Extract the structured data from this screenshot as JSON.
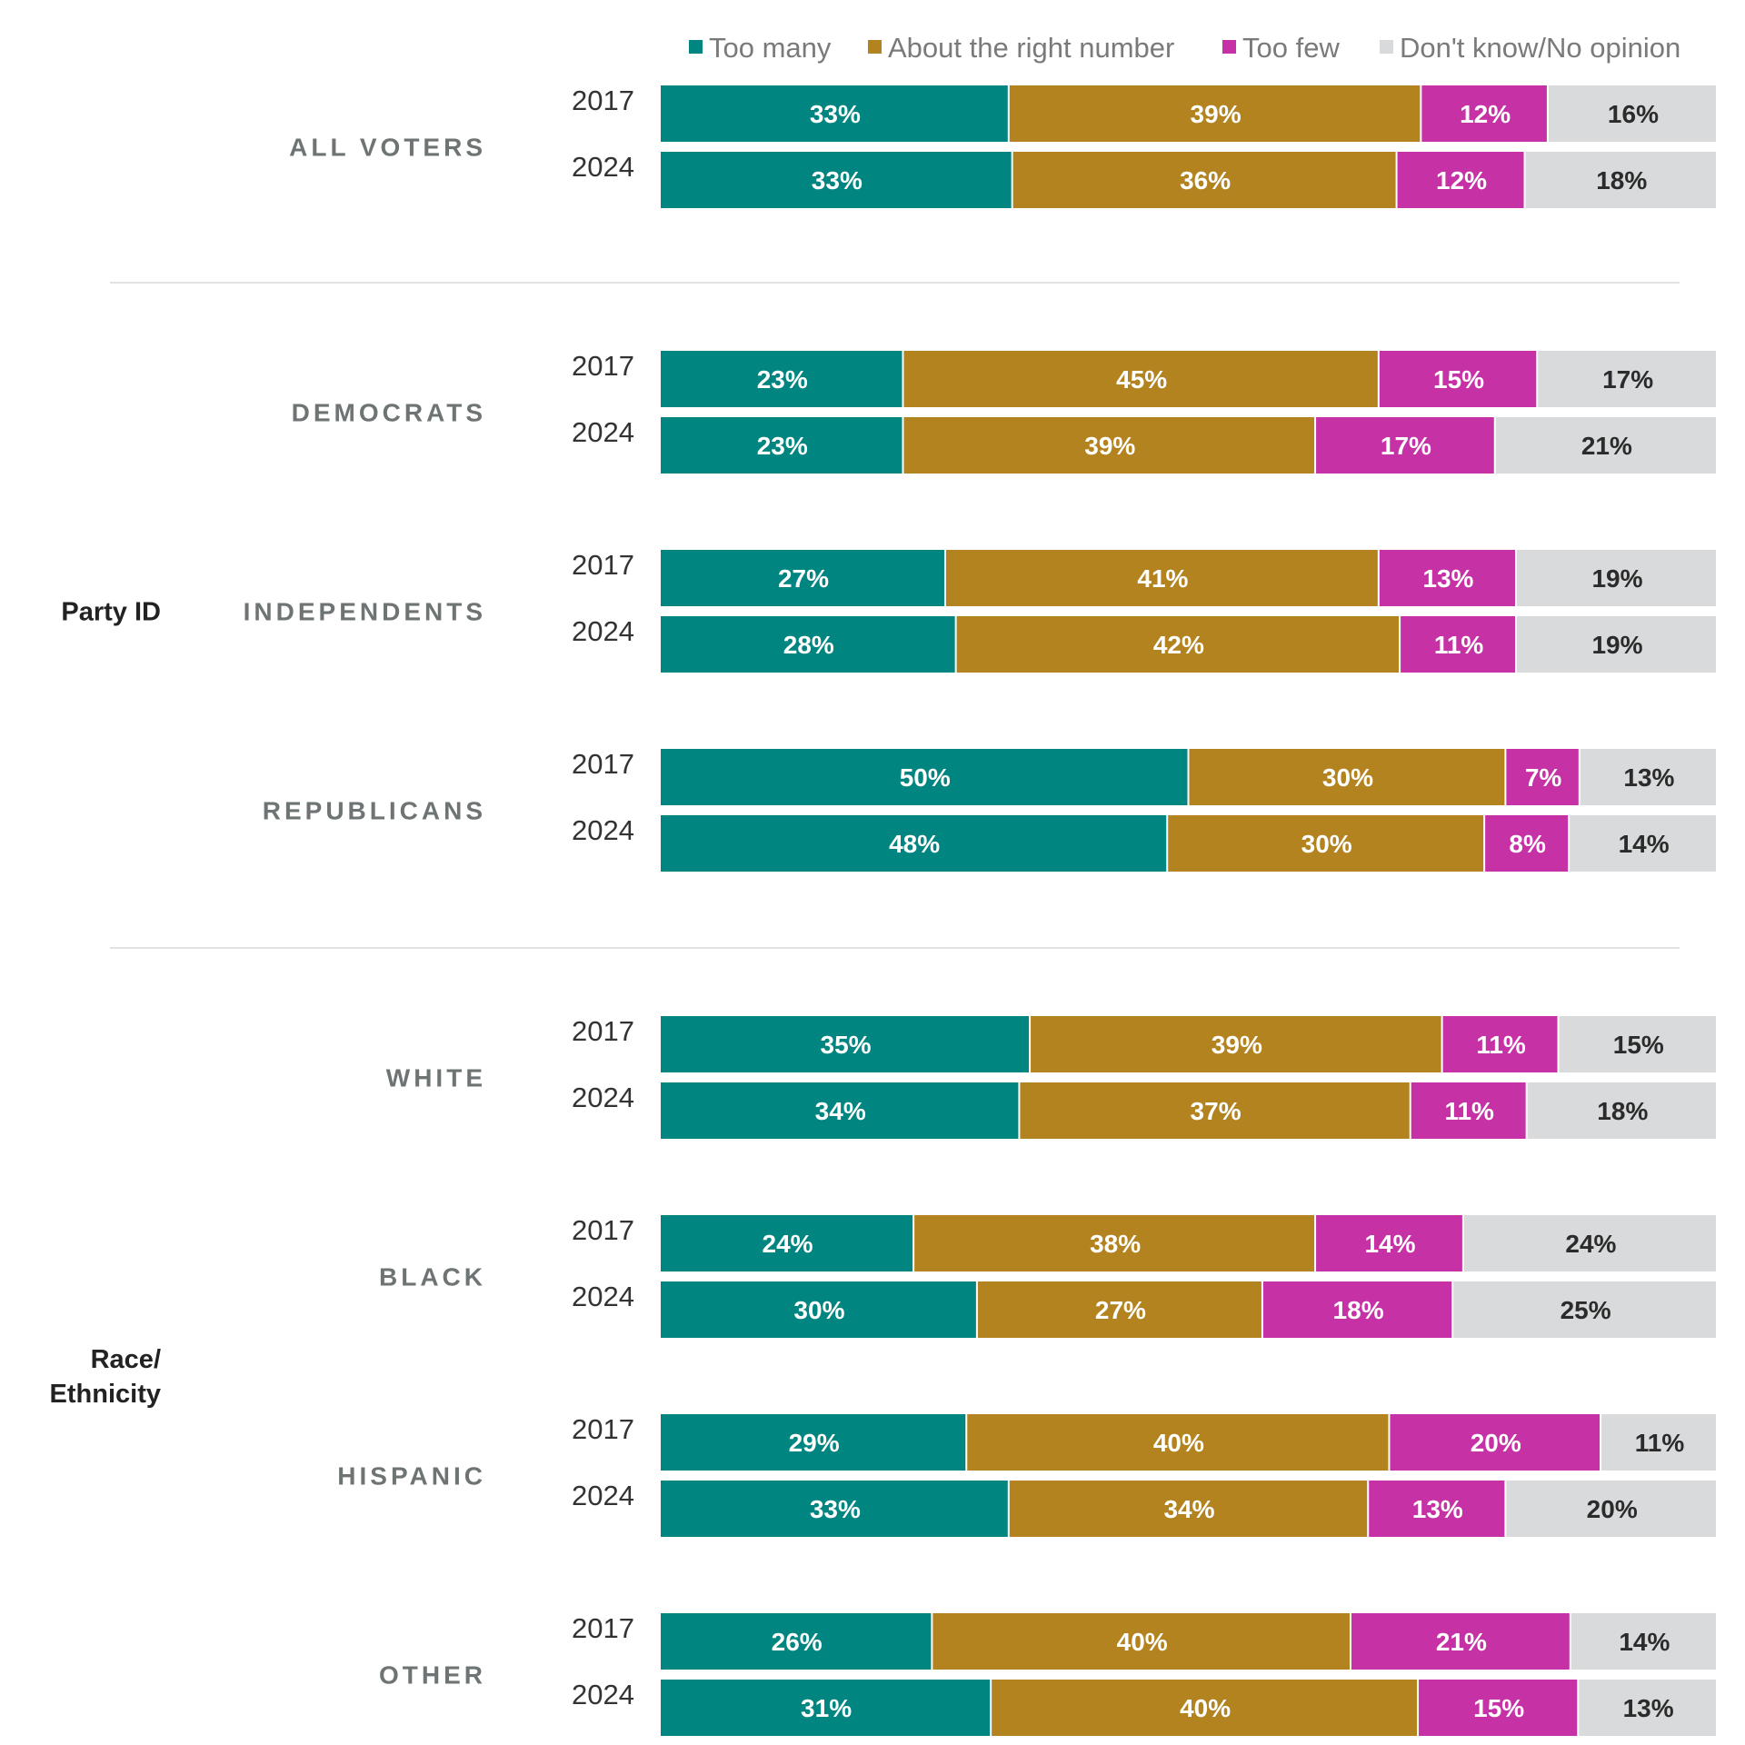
{
  "chart_data": {
    "type": "bar",
    "orientation": "horizontal",
    "stacked": true,
    "percent_scale": [
      0,
      100
    ],
    "legend_position": "top",
    "series": [
      {
        "name": "Too many",
        "color": "#008580"
      },
      {
        "name": "About the right number",
        "color": "#b3831f"
      },
      {
        "name": "Too few",
        "color": "#c632a6"
      },
      {
        "name": "Don't know/No opinion",
        "color": "#d8dadb"
      }
    ],
    "sections": [
      {
        "label": "",
        "groups": [
          {
            "label": "ALL VOTERS",
            "rows": [
              {
                "year": "2017",
                "values": [
                  33,
                  39,
                  12,
                  16
                ]
              },
              {
                "year": "2024",
                "values": [
                  33,
                  36,
                  12,
                  18
                ]
              }
            ]
          }
        ]
      },
      {
        "label": "Party ID",
        "groups": [
          {
            "label": "DEMOCRATS",
            "rows": [
              {
                "year": "2017",
                "values": [
                  23,
                  45,
                  15,
                  17
                ]
              },
              {
                "year": "2024",
                "values": [
                  23,
                  39,
                  17,
                  21
                ]
              }
            ]
          },
          {
            "label": "INDEPENDENTS",
            "rows": [
              {
                "year": "2017",
                "values": [
                  27,
                  41,
                  13,
                  19
                ]
              },
              {
                "year": "2024",
                "values": [
                  28,
                  42,
                  11,
                  19
                ]
              }
            ]
          },
          {
            "label": "REPUBLICANS",
            "rows": [
              {
                "year": "2017",
                "values": [
                  50,
                  30,
                  7,
                  13
                ]
              },
              {
                "year": "2024",
                "values": [
                  48,
                  30,
                  8,
                  14
                ]
              }
            ]
          }
        ]
      },
      {
        "label": "Race/\nEthnicity",
        "groups": [
          {
            "label": "WHITE",
            "rows": [
              {
                "year": "2017",
                "values": [
                  35,
                  39,
                  11,
                  15
                ]
              },
              {
                "year": "2024",
                "values": [
                  34,
                  37,
                  11,
                  18
                ]
              }
            ]
          },
          {
            "label": "BLACK",
            "rows": [
              {
                "year": "2017",
                "values": [
                  24,
                  38,
                  14,
                  24
                ]
              },
              {
                "year": "2024",
                "values": [
                  30,
                  27,
                  18,
                  25
                ]
              }
            ]
          },
          {
            "label": "HISPANIC",
            "rows": [
              {
                "year": "2017",
                "values": [
                  29,
                  40,
                  20,
                  11
                ]
              },
              {
                "year": "2024",
                "values": [
                  33,
                  34,
                  13,
                  20
                ]
              }
            ]
          },
          {
            "label": "OTHER",
            "rows": [
              {
                "year": "2017",
                "values": [
                  26,
                  40,
                  21,
                  14
                ]
              },
              {
                "year": "2024",
                "values": [
                  31,
                  40,
                  15,
                  13
                ]
              }
            ]
          }
        ]
      }
    ]
  }
}
